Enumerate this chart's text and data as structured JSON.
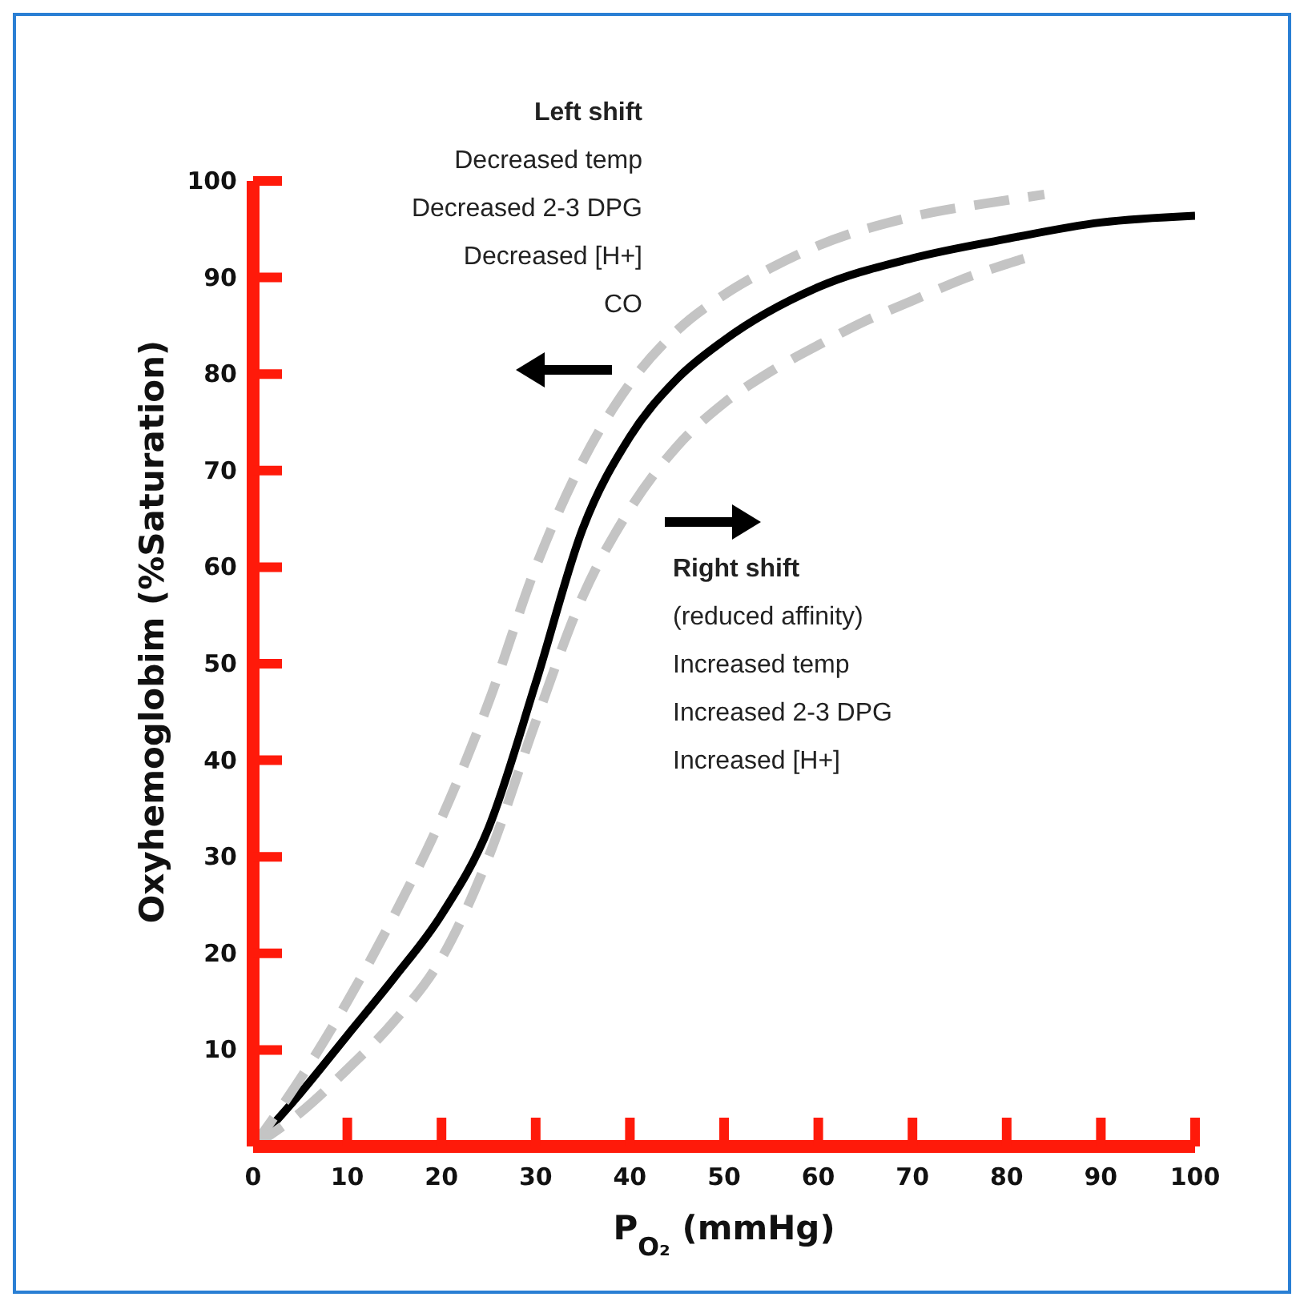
{
  "chart_data": {
    "type": "line",
    "xlabel": "P$_{O₂}$ (mmHg)",
    "ylabel": "Oxyhemoglobim (%Saturation)",
    "xlim": [
      0,
      100
    ],
    "ylim": [
      0,
      100
    ],
    "xticks": [
      0,
      10,
      20,
      30,
      40,
      50,
      60,
      70,
      80,
      90,
      100
    ],
    "yticks": [
      10,
      20,
      30,
      40,
      50,
      60,
      70,
      80,
      90,
      100
    ],
    "marker": "none",
    "series": [
      {
        "color": "#000000",
        "line_style": "solid",
        "x": [
          0,
          5,
          10,
          15,
          20,
          25,
          30,
          35,
          40,
          45,
          50,
          60,
          70,
          80,
          90,
          100
        ],
        "values": [
          0,
          5.5,
          11.5,
          17.5,
          24,
          33,
          48,
          64,
          73.5,
          79.5,
          83.5,
          89,
          92,
          94,
          95.7,
          96.4
        ]
      },
      {
        "color": "#c4c4c4",
        "line_style": "dashed",
        "x": [
          0,
          5,
          10,
          15,
          20,
          25,
          30,
          35,
          40,
          45,
          50,
          55,
          60,
          70,
          80,
          84
        ],
        "values": [
          0,
          7,
          15,
          24,
          34,
          46,
          60,
          71,
          79,
          84.5,
          88.2,
          91,
          93.3,
          96.3,
          98,
          98.6
        ]
      },
      {
        "color": "#c4c4c4",
        "line_style": "dashed",
        "x": [
          0,
          5,
          10,
          15,
          20,
          25,
          30,
          35,
          40,
          45,
          50,
          55,
          60,
          65,
          70,
          75,
          80,
          82
        ],
        "values": [
          0,
          3.5,
          8,
          13,
          19.5,
          30,
          44,
          57,
          66,
          72.5,
          77,
          80.3,
          83,
          85.5,
          87.6,
          89.7,
          91.4,
          92
        ]
      }
    ],
    "annotations": [
      "Left shift\nDecreased temp\nDecreased 2-3 DPG\nDecreased [H+]\nCO",
      "Right shift\n(reduced affinity)\nIncreased temp\nIncreased 2-3 DPG\nIncreased [H+]"
    ]
  }
}
